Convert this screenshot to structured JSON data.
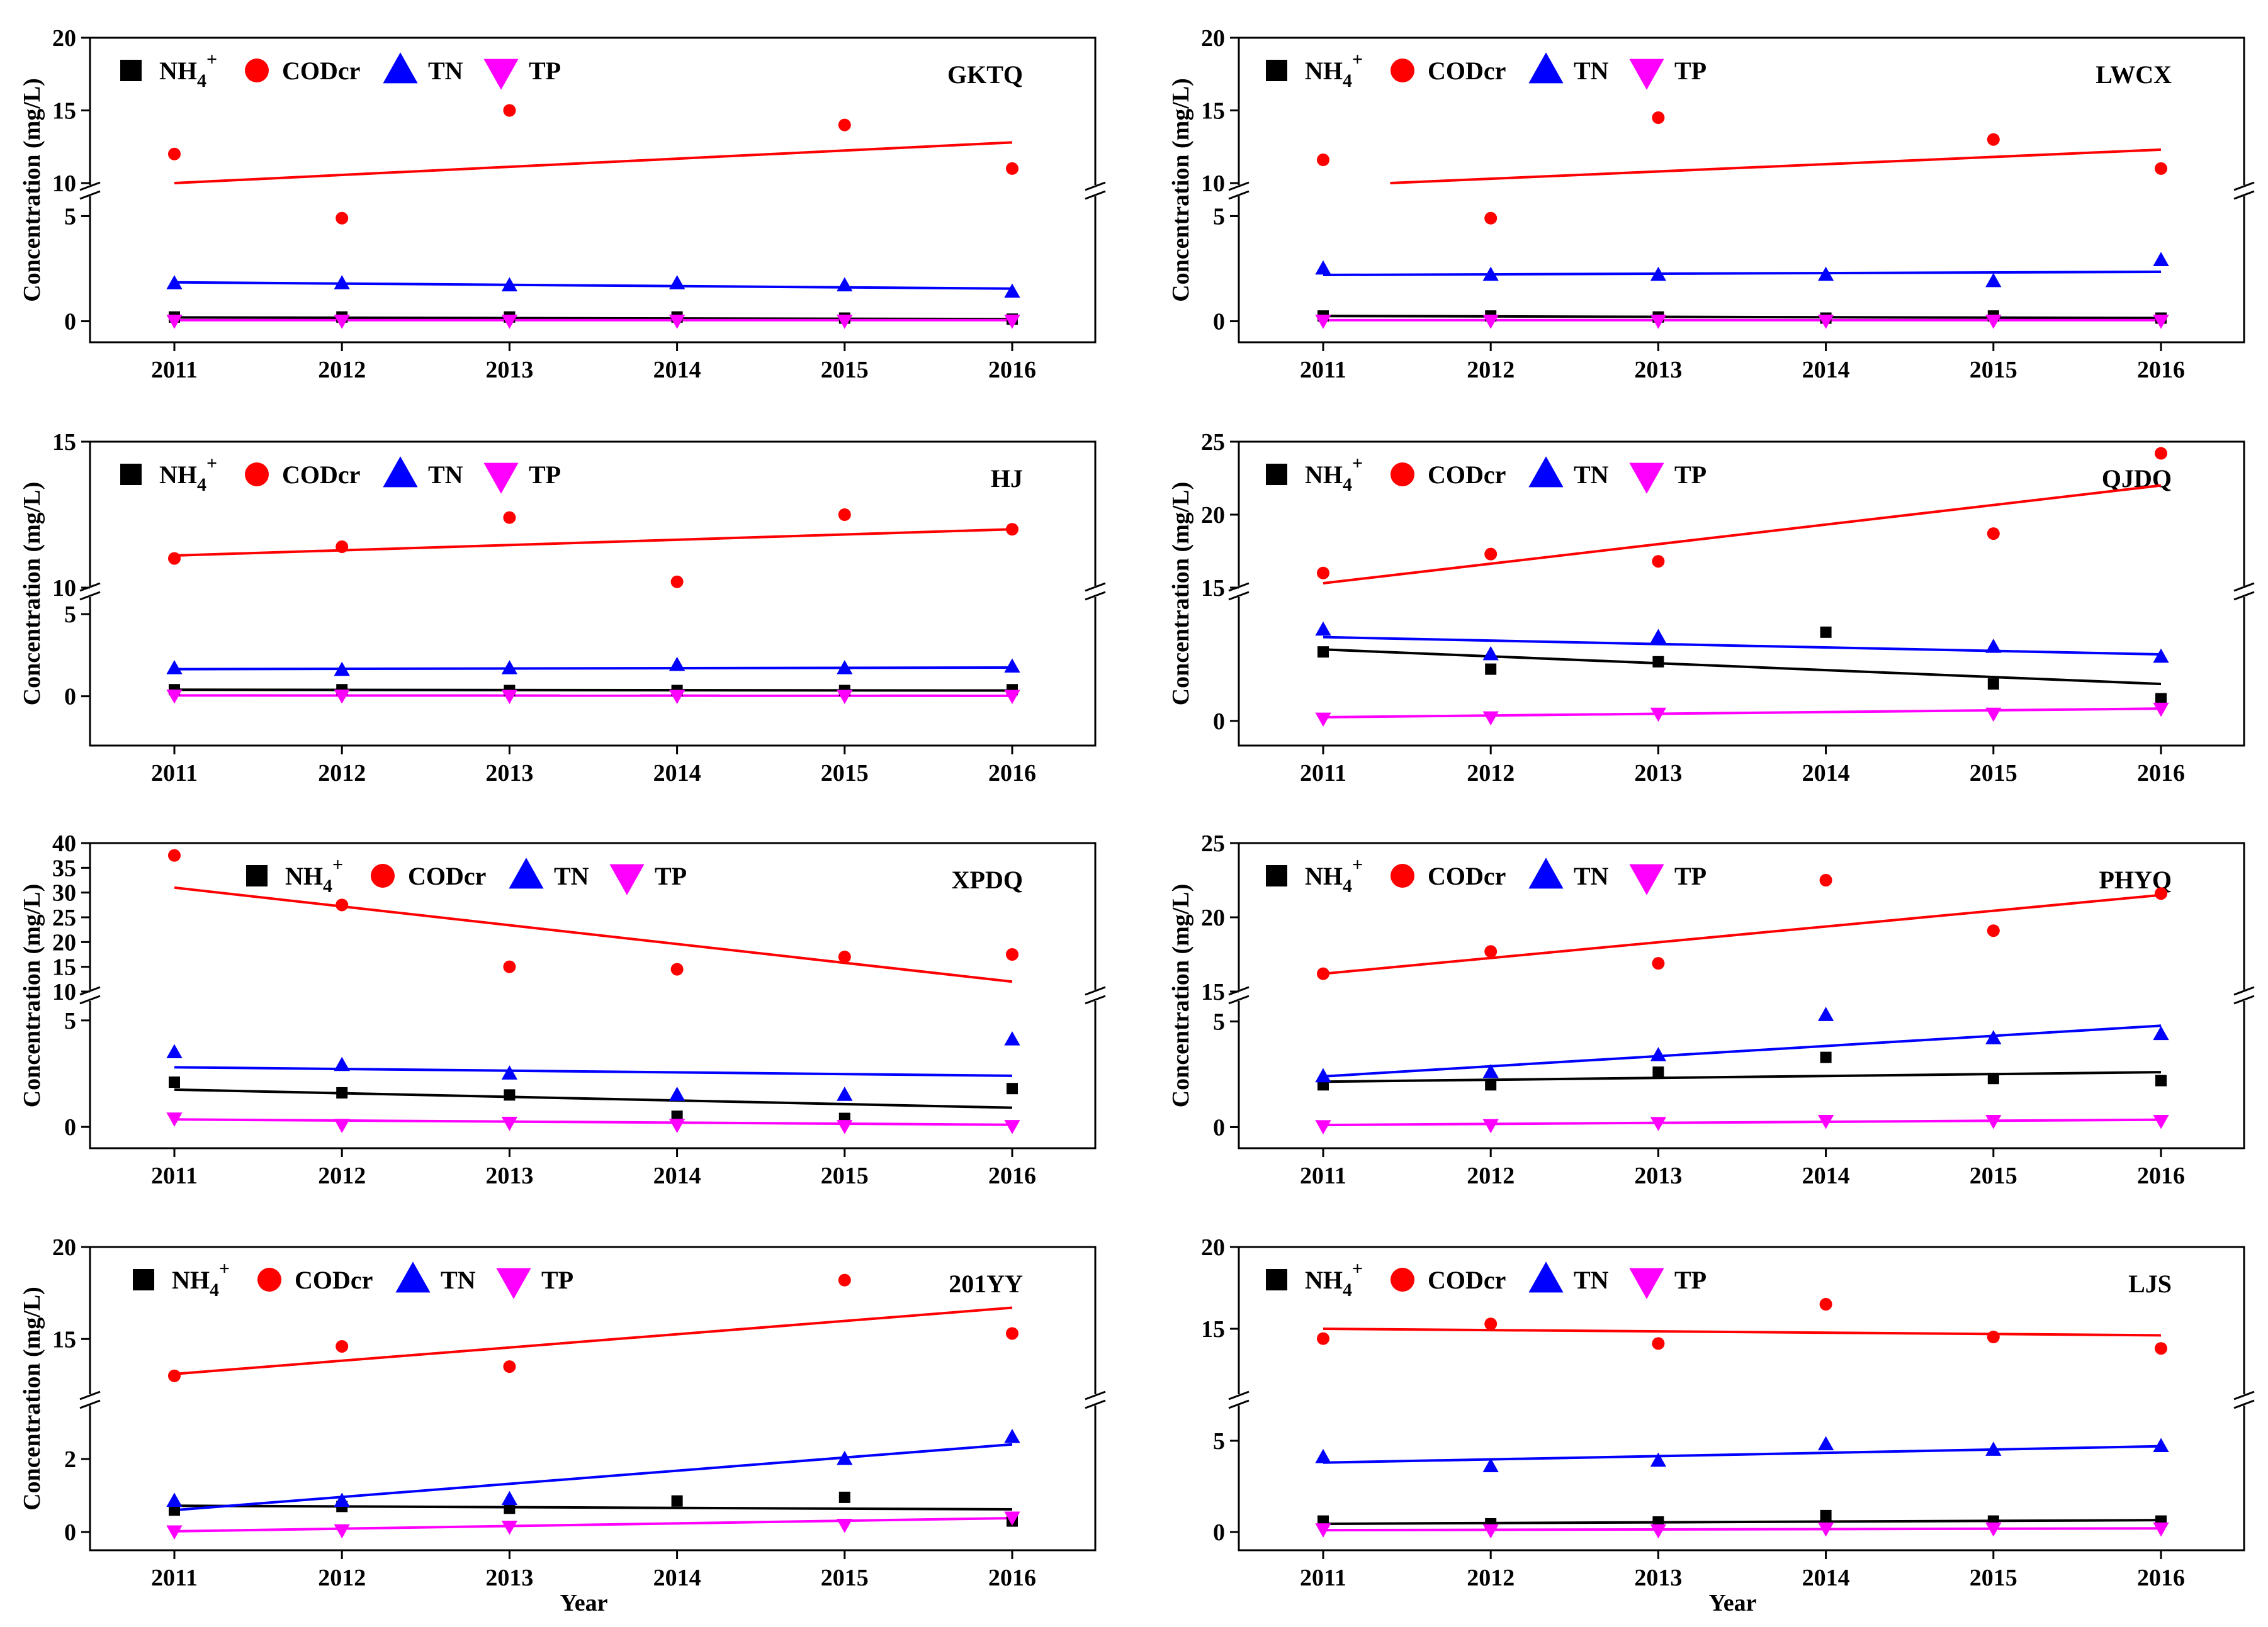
{
  "figure": {
    "x_axis_title": "Year",
    "y_axis_title": "Concentration (mg/L)",
    "legend": {
      "nh4_base": "NH",
      "nh4_sub": "4",
      "nh4_sup": "+",
      "cod": "CODcr",
      "tn": "TN",
      "tp": "TP"
    },
    "colors": {
      "NH4": "#000000",
      "CODcr": "#ff0000",
      "TN": "#0000ff",
      "TP": "#ff00ff"
    }
  },
  "chart_data": [
    {
      "type": "scatter",
      "title": "GKTQ",
      "xlabel": "",
      "ylabel": "Concentration (mg/L)",
      "categories": [
        "2011",
        "2012",
        "2013",
        "2014",
        "2015",
        "2016"
      ],
      "axis_lower": {
        "ylim": [
          -1,
          6
        ],
        "ticks": [
          0,
          5
        ]
      },
      "axis_upper": {
        "ylim": [
          10,
          20
        ],
        "ticks": [
          10,
          15,
          20
        ]
      },
      "series": [
        {
          "name": "NH4+",
          "values": [
            0.2,
            0.2,
            0.2,
            0.2,
            0.15,
            0.1
          ],
          "trend": [
            0.18,
            0.1
          ]
        },
        {
          "name": "CODcr",
          "values": [
            12,
            4.9,
            15,
            null,
            14,
            11
          ],
          "trend": [
            10,
            12.8
          ]
        },
        {
          "name": "TN",
          "values": [
            1.8,
            1.8,
            1.7,
            1.8,
            1.7,
            1.4
          ],
          "trend": [
            1.85,
            1.55
          ]
        },
        {
          "name": "TP",
          "values": [
            0.03,
            0.03,
            0.03,
            0.03,
            0.03,
            0.03
          ],
          "trend": [
            0.05,
            0.05
          ]
        }
      ]
    },
    {
      "type": "scatter",
      "title": "LWCX",
      "xlabel": "",
      "ylabel": "Concentration (mg/L)",
      "categories": [
        "2011",
        "2012",
        "2013",
        "2014",
        "2015",
        "2016"
      ],
      "axis_lower": {
        "ylim": [
          -1,
          6
        ],
        "ticks": [
          0,
          5
        ]
      },
      "axis_upper": {
        "ylim": [
          10,
          20
        ],
        "ticks": [
          10,
          15,
          20
        ]
      },
      "series": [
        {
          "name": "NH4+",
          "values": [
            0.25,
            0.25,
            0.2,
            0.15,
            0.25,
            0.15
          ],
          "trend": [
            0.25,
            0.15
          ]
        },
        {
          "name": "CODcr",
          "values": [
            11.6,
            4.9,
            14.5,
            null,
            13,
            11
          ],
          "trend": [
            10,
            12.3
          ],
          "trend_x": [
            2011.4,
            2016
          ]
        },
        {
          "name": "TN",
          "values": [
            2.5,
            2.2,
            2.2,
            2.2,
            1.9,
            2.9
          ],
          "trend": [
            2.2,
            2.35
          ]
        },
        {
          "name": "TP",
          "values": [
            0.03,
            0.03,
            0.03,
            0.03,
            0.03,
            0.03
          ],
          "trend": [
            0.05,
            0.05
          ]
        }
      ]
    },
    {
      "type": "scatter",
      "title": "HJ",
      "xlabel": "",
      "ylabel": "Concentration (mg/L)",
      "categories": [
        "2011",
        "2012",
        "2013",
        "2014",
        "2015",
        "2016"
      ],
      "axis_lower": {
        "ylim": [
          -3,
          6
        ],
        "ticks": [
          0,
          5
        ]
      },
      "axis_upper": {
        "ylim": [
          10,
          15
        ],
        "ticks": [
          10,
          15
        ]
      },
      "series": [
        {
          "name": "NH4+",
          "values": [
            0.4,
            0.4,
            0.35,
            0.35,
            0.35,
            0.4
          ],
          "trend": [
            0.4,
            0.35
          ]
        },
        {
          "name": "CODcr",
          "values": [
            11,
            11.4,
            12.4,
            10.2,
            12.5,
            12
          ],
          "trend": [
            11.1,
            12
          ]
        },
        {
          "name": "TN",
          "values": [
            1.7,
            1.6,
            1.7,
            1.9,
            1.7,
            1.8
          ],
          "trend": [
            1.65,
            1.75
          ]
        },
        {
          "name": "TP",
          "values": [
            0.05,
            0.05,
            0.03,
            0.03,
            0.03,
            0.03
          ],
          "trend": [
            0.05,
            0.03
          ]
        }
      ]
    },
    {
      "type": "scatter",
      "title": "QJDQ",
      "xlabel": "",
      "ylabel": "Concentration (mg/L)",
      "categories": [
        "2011",
        "2012",
        "2013",
        "2014",
        "2015",
        "2016"
      ],
      "axis_lower": {
        "ylim": [
          -1,
          5
        ],
        "ticks": [
          0
        ]
      },
      "axis_upper": {
        "ylim": [
          15,
          25
        ],
        "ticks": [
          15,
          20,
          25
        ]
      },
      "series": [
        {
          "name": "NH4+",
          "values": [
            2.8,
            2.1,
            2.4,
            3.6,
            1.5,
            0.9
          ],
          "trend": [
            2.9,
            1.5
          ]
        },
        {
          "name": "CODcr",
          "values": [
            16,
            17.3,
            16.8,
            null,
            18.7,
            24.2
          ],
          "trend": [
            15.3,
            22
          ]
        },
        {
          "name": "TN",
          "values": [
            3.7,
            2.7,
            3.4,
            null,
            3.0,
            2.6
          ],
          "trend": [
            3.4,
            2.7
          ]
        },
        {
          "name": "TP",
          "values": [
            0.1,
            0.15,
            0.3,
            null,
            0.3,
            0.5
          ],
          "trend": [
            0.15,
            0.5
          ]
        }
      ]
    },
    {
      "type": "scatter",
      "title": "XPDQ",
      "xlabel": "",
      "ylabel": "Concentration (mg/L)",
      "categories": [
        "2011",
        "2012",
        "2013",
        "2014",
        "2015",
        "2016"
      ],
      "axis_lower": {
        "ylim": [
          -1,
          6
        ],
        "ticks": [
          0,
          5
        ]
      },
      "axis_upper": {
        "ylim": [
          10,
          40
        ],
        "ticks": [
          10,
          15,
          20,
          25,
          30,
          35,
          40
        ]
      },
      "series": [
        {
          "name": "NH4+",
          "values": [
            2.1,
            1.6,
            1.5,
            0.5,
            0.4,
            1.8
          ],
          "trend": [
            1.75,
            0.9
          ]
        },
        {
          "name": "CODcr",
          "values": [
            37.5,
            27.5,
            15,
            14.5,
            17,
            17.5
          ],
          "trend": [
            31,
            12
          ]
        },
        {
          "name": "TN",
          "values": [
            3.5,
            2.9,
            2.5,
            1.5,
            1.5,
            4.1
          ],
          "trend": [
            2.8,
            2.4
          ]
        },
        {
          "name": "TP",
          "values": [
            0.4,
            0.1,
            0.2,
            0.1,
            0.05,
            0.05
          ],
          "trend": [
            0.35,
            0.1
          ]
        }
      ]
    },
    {
      "type": "scatter",
      "title": "PHYQ",
      "xlabel": "",
      "ylabel": "Concentration (mg/L)",
      "categories": [
        "2011",
        "2012",
        "2013",
        "2014",
        "2015",
        "2016"
      ],
      "axis_lower": {
        "ylim": [
          -1,
          6
        ],
        "ticks": [
          0,
          5
        ]
      },
      "axis_upper": {
        "ylim": [
          15,
          25
        ],
        "ticks": [
          15,
          20,
          25
        ]
      },
      "series": [
        {
          "name": "NH4+",
          "values": [
            2.0,
            2.0,
            2.6,
            3.3,
            2.3,
            2.2
          ],
          "trend": [
            2.15,
            2.6
          ]
        },
        {
          "name": "CODcr",
          "values": [
            16.2,
            17.7,
            16.9,
            22.5,
            19.1,
            21.6
          ],
          "trend": [
            16.2,
            21.5
          ]
        },
        {
          "name": "TN",
          "values": [
            2.4,
            2.6,
            3.4,
            5.3,
            4.2,
            4.4
          ],
          "trend": [
            2.4,
            4.8
          ]
        },
        {
          "name": "TP",
          "values": [
            0.05,
            0.1,
            0.2,
            0.3,
            0.3,
            0.3
          ],
          "trend": [
            0.1,
            0.35
          ]
        }
      ]
    },
    {
      "type": "scatter",
      "title": "201YY",
      "xlabel": "Year",
      "ylabel": "Concentration (mg/L)",
      "categories": [
        "2011",
        "2012",
        "2013",
        "2014",
        "2015",
        "2016"
      ],
      "axis_lower": {
        "ylim": [
          -0.5,
          3.5
        ],
        "ticks": [
          0,
          2
        ]
      },
      "axis_upper": {
        "ylim": [
          12,
          20
        ],
        "ticks": [
          15,
          20
        ]
      },
      "series": [
        {
          "name": "NH4+",
          "values": [
            0.6,
            0.7,
            0.65,
            0.85,
            0.95,
            0.3
          ],
          "trend": [
            0.72,
            0.62
          ]
        },
        {
          "name": "CODcr",
          "values": [
            13,
            14.6,
            13.5,
            null,
            18.2,
            15.3
          ],
          "trend": [
            13.1,
            16.7
          ]
        },
        {
          "name": "TN",
          "values": [
            0.85,
            0.85,
            0.9,
            null,
            2.0,
            2.6
          ],
          "trend": [
            0.6,
            2.4
          ]
        },
        {
          "name": "TP",
          "values": [
            0.02,
            0.05,
            0.15,
            null,
            0.2,
            0.4
          ],
          "trend": [
            0.02,
            0.38
          ]
        }
      ]
    },
    {
      "type": "scatter",
      "title": "LJS",
      "xlabel": "Year",
      "ylabel": "",
      "categories": [
        "2011",
        "2012",
        "2013",
        "2014",
        "2015",
        "2016"
      ],
      "axis_lower": {
        "ylim": [
          -1,
          7
        ],
        "ticks": [
          0,
          5
        ]
      },
      "axis_upper": {
        "ylim": [
          11,
          20
        ],
        "ticks": [
          15,
          20
        ]
      },
      "series": [
        {
          "name": "NH4+",
          "values": [
            0.6,
            0.45,
            0.55,
            0.9,
            0.6,
            0.6
          ],
          "trend": [
            0.45,
            0.65
          ]
        },
        {
          "name": "CODcr",
          "values": [
            14.4,
            15.3,
            14.1,
            16.5,
            14.5,
            13.8
          ],
          "trend": [
            15,
            14.6
          ]
        },
        {
          "name": "TN",
          "values": [
            4.1,
            3.6,
            3.9,
            4.8,
            4.5,
            4.7
          ],
          "trend": [
            3.8,
            4.7
          ]
        },
        {
          "name": "TP",
          "values": [
            0.15,
            0.1,
            0.1,
            0.2,
            0.2,
            0.2
          ],
          "trend": [
            0.1,
            0.2
          ]
        }
      ]
    }
  ]
}
